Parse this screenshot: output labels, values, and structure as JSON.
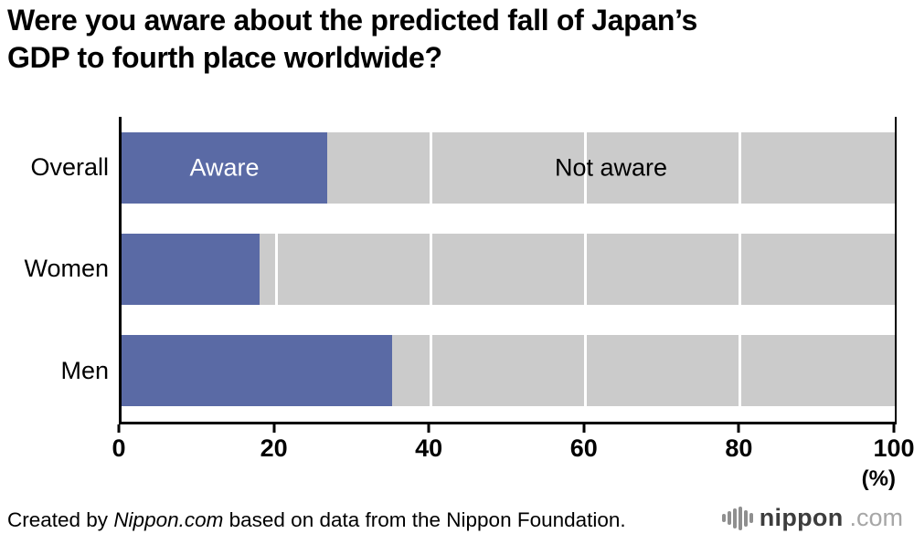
{
  "title": {
    "line1": "Were you aware about the predicted fall of Japan’s",
    "line2": "GDP to fourth place worldwide?"
  },
  "chart_data": {
    "type": "bar",
    "orientation": "horizontal",
    "stacked": true,
    "title": "Were you aware about the predicted fall of Japan’s GDP to fourth place worldwide?",
    "categories": [
      "Overall",
      "Women",
      "Men"
    ],
    "series": [
      {
        "name": "Aware",
        "values": [
          26.6,
          17.8,
          35.0
        ],
        "color": "#5a6aa5"
      },
      {
        "name": "Not aware",
        "values": [
          73.4,
          82.2,
          65.0
        ],
        "color": "#cbcbcb"
      }
    ],
    "xlim": [
      0,
      100
    ],
    "xticks": [
      0,
      20,
      40,
      60,
      80,
      100
    ],
    "gridlines": [
      20,
      40,
      60,
      80
    ],
    "unit_label": "(%)",
    "legend_position": "inline-first-row",
    "grid": true
  },
  "footer": {
    "credit_prefix": "Created by ",
    "credit_site": "Nippon.com",
    "credit_suffix": " based on data from the Nippon Foundation.",
    "logo_icon": "waveform-icon",
    "logo_name": "nippon",
    "logo_tld": ".com"
  }
}
